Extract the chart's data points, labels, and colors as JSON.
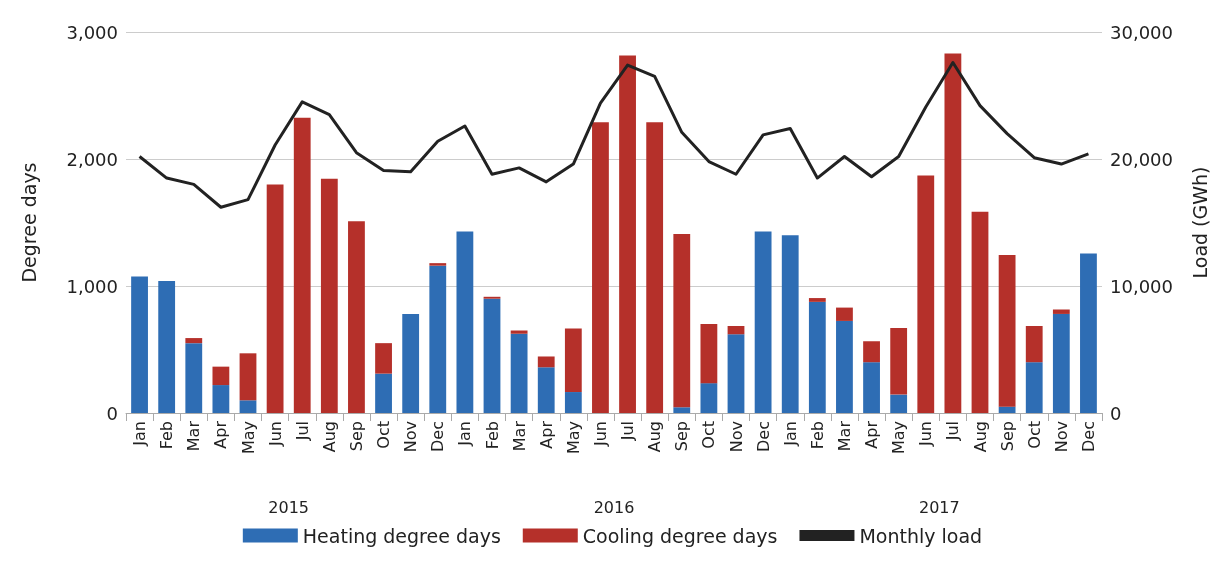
{
  "chart_data": {
    "type": "bar",
    "stacked": true,
    "ylabel": "Degree days",
    "y2label": "Load (GWh)",
    "categories": [
      "Jan",
      "Feb",
      "Mar",
      "Apr",
      "May",
      "Jun",
      "Jul",
      "Aug",
      "Sep",
      "Oct",
      "Nov",
      "Dec",
      "Jan",
      "Feb",
      "Mar",
      "Apr",
      "May",
      "Jun",
      "Jul",
      "Aug",
      "Sep",
      "Oct",
      "Nov",
      "Dec",
      "Jan",
      "Feb",
      "Mar",
      "Apr",
      "May",
      "Jun",
      "Jul",
      "Aug",
      "Sep",
      "Oct",
      "Nov",
      "Dec"
    ],
    "series": [
      {
        "name": "Heating degree days",
        "color": "#2e6db4",
        "values": [
          1075,
          1040,
          550,
          220,
          100,
          0,
          0,
          0,
          0,
          310,
          780,
          1160,
          1430,
          900,
          625,
          360,
          165,
          0,
          0,
          0,
          45,
          235,
          620,
          1430,
          1400,
          875,
          725,
          400,
          145,
          0,
          0,
          0,
          50,
          400,
          780,
          1255
        ]
      },
      {
        "name": "Cooling degree days",
        "color": "#b5302a",
        "values": [
          0,
          0,
          40,
          145,
          370,
          1800,
          2325,
          1845,
          1510,
          240,
          0,
          20,
          0,
          15,
          25,
          85,
          500,
          2290,
          2815,
          2290,
          1365,
          465,
          65,
          0,
          0,
          30,
          105,
          165,
          525,
          1870,
          2830,
          1585,
          1195,
          285,
          35,
          0
        ]
      },
      {
        "name": "Monthly load",
        "type": "line",
        "axis": "y2",
        "color": "#222222",
        "values": [
          20200,
          18500,
          18000,
          16200,
          16800,
          21100,
          24500,
          23500,
          20500,
          19100,
          19000,
          21400,
          22600,
          18800,
          19300,
          18200,
          19600,
          24400,
          27400,
          26500,
          22100,
          19800,
          18800,
          21900,
          22400,
          18500,
          20200,
          18600,
          20200,
          24100,
          27600,
          24200,
          22000,
          20100,
          19600,
          20400
        ]
      }
    ],
    "ylim": [
      0,
      3000
    ],
    "yticks": [
      0,
      {
        "value": 1000,
        "label": "1,000"
      },
      {
        "value": 2000,
        "label": "2,000"
      },
      {
        "value": 3000,
        "label": "3,000"
      }
    ],
    "y2lim": [
      0,
      30000
    ],
    "y2ticks": [
      0,
      {
        "value": 10000,
        "label": "10,000"
      },
      {
        "value": 20000,
        "label": "20,000"
      },
      {
        "value": 30000,
        "label": "30,000"
      }
    ],
    "annotations": [
      "2015",
      "2016",
      "2017"
    ],
    "grid": "y",
    "legend": "bottom",
    "marker": "none",
    "line_style": "solid"
  }
}
